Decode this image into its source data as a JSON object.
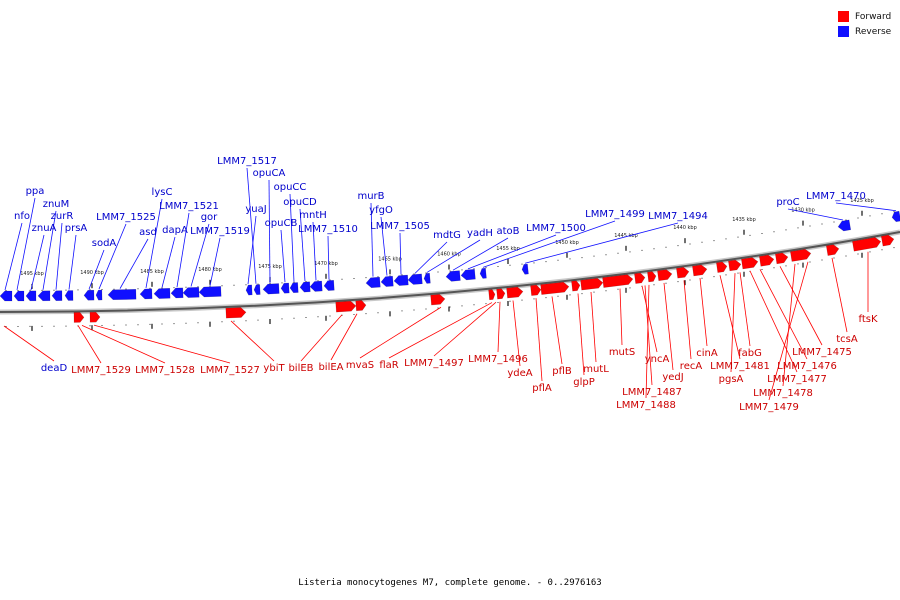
{
  "legend": {
    "forward_label": "Forward",
    "reverse_label": "Reverse",
    "forward_color": "#ff0000",
    "reverse_color": "#1010ff"
  },
  "caption": "Listeria monocytogenes M7, complete genome. - 0..2976163",
  "scale_ticks": [
    "1495 kbp",
    "1490 kbp",
    "1485 kbp",
    "1480 kbp",
    "1475 kbp",
    "1470 kbp",
    "1465 kbp",
    "1460 kbp",
    "1455 kbp",
    "1450 kbp",
    "1445 kbp",
    "1440 kbp",
    "1435 kbp",
    "1430 kbp",
    "1425 kbp"
  ],
  "reverse_genes": [
    "nfo",
    "ppa",
    "znuA",
    "znuM",
    "zurR",
    "prsA",
    "sodA",
    "LMM7_1525",
    "asd",
    "lysC",
    "dapA",
    "LMM7_1521",
    "gor",
    "LMM7_1519",
    "yuaJ",
    "LMM7_1517",
    "opuCA",
    "opuCB",
    "opuCC",
    "opuCD",
    "mntH",
    "LMM7_1510",
    "murB",
    "yfgO",
    "LMM7_1505",
    "mdtG",
    "yadH",
    "atoB",
    "LMM7_1500",
    "LMM7_1499",
    "LMM7_1494",
    "proC",
    "LMM7_1470"
  ],
  "forward_genes": [
    "deaD",
    "LMM7_1529",
    "LMM7_1528",
    "LMM7_1527",
    "ybiT",
    "bilEB",
    "bilEA",
    "mvaS",
    "flaR",
    "LMM7_1497",
    "LMM7_1496",
    "ydeA",
    "pflA",
    "pflB",
    "glpP",
    "mutL",
    "mutS",
    "yncA",
    "LMM7_1487",
    "LMM7_1488",
    "yedJ",
    "recA",
    "cinA",
    "LMM7_1481",
    "pgsA",
    "fabG",
    "LMM7_1477",
    "LMM7_1476",
    "LMM7_1475",
    "LMM7_1478",
    "LMM7_1479",
    "tcsA",
    "ftsK"
  ]
}
